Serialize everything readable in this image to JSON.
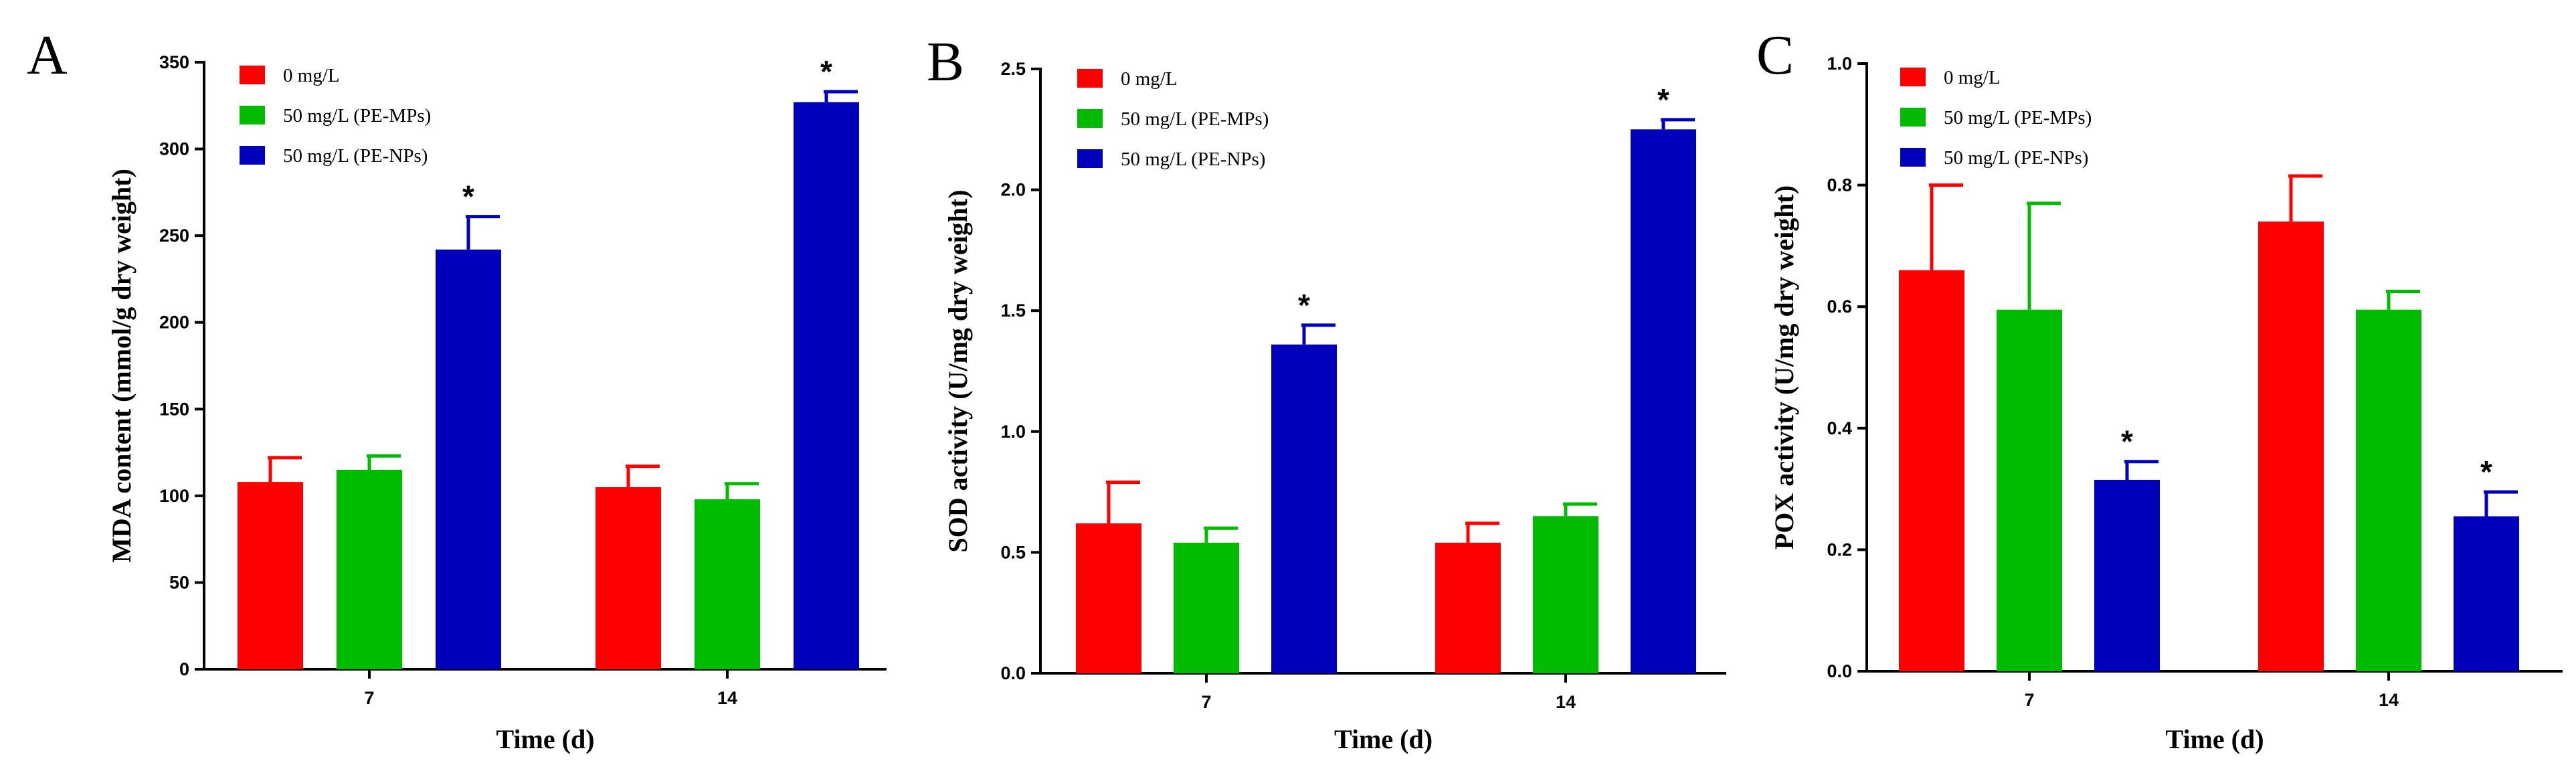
{
  "chart_data": [
    {
      "panel": "A",
      "type": "bar",
      "xlabel": "Time (d)",
      "ylabel": "MDA content (mmol/g dry weight)",
      "ylim": [
        0,
        350
      ],
      "yticks": [
        0,
        50,
        100,
        150,
        200,
        250,
        300,
        350
      ],
      "ytick_labels": [
        "0",
        "50",
        "100",
        "150",
        "200",
        "250",
        "300",
        "350"
      ],
      "categories": [
        "7",
        "14"
      ],
      "legend_position": "top-left",
      "series": [
        {
          "name": "0 mg/L",
          "color": "#ff0000",
          "values": [
            108,
            105
          ],
          "errors": [
            14,
            12
          ],
          "significant": [
            false,
            false
          ]
        },
        {
          "name": "50 mg/L (PE-MPs)",
          "color": "#00bb00",
          "values": [
            115,
            98
          ],
          "errors": [
            8,
            9
          ],
          "significant": [
            false,
            false
          ]
        },
        {
          "name": "50 mg/L (PE-NPs)",
          "color": "#0000bb",
          "values": [
            242,
            327
          ],
          "errors": [
            19,
            6
          ],
          "significant": [
            true,
            true
          ]
        }
      ],
      "significance_mark": "*"
    },
    {
      "panel": "B",
      "type": "bar",
      "xlabel": "Time (d)",
      "ylabel": "SOD activity (U/mg dry weight)",
      "ylim": [
        0,
        2.5
      ],
      "yticks": [
        0,
        0.5,
        1.0,
        1.5,
        2.0,
        2.5
      ],
      "ytick_labels": [
        "0.0",
        "0.5",
        "1.0",
        "1.5",
        "2.0",
        "2.5"
      ],
      "categories": [
        "7",
        "14"
      ],
      "legend_position": "top-left",
      "series": [
        {
          "name": "0 mg/L",
          "color": "#ff0000",
          "values": [
            0.62,
            0.54
          ],
          "errors": [
            0.17,
            0.08
          ],
          "significant": [
            false,
            false
          ]
        },
        {
          "name": "50 mg/L (PE-MPs)",
          "color": "#00bb00",
          "values": [
            0.54,
            0.65
          ],
          "errors": [
            0.06,
            0.05
          ],
          "significant": [
            false,
            false
          ]
        },
        {
          "name": "50 mg/L (PE-NPs)",
          "color": "#0000bb",
          "values": [
            1.36,
            2.25
          ],
          "errors": [
            0.08,
            0.04
          ],
          "significant": [
            true,
            true
          ]
        }
      ],
      "significance_mark": "*"
    },
    {
      "panel": "C",
      "type": "bar",
      "xlabel": "Time (d)",
      "ylabel": "POX activity (U/mg dry weight)",
      "ylim": [
        0,
        1.0
      ],
      "yticks": [
        0,
        0.2,
        0.4,
        0.6,
        0.8,
        1.0
      ],
      "ytick_labels": [
        "0.0",
        "0.2",
        "0.4",
        "0.6",
        "0.8",
        "1.0"
      ],
      "categories": [
        "7",
        "14"
      ],
      "legend_position": "top-left",
      "series": [
        {
          "name": "0 mg/L",
          "color": "#ff0000",
          "values": [
            0.66,
            0.74
          ],
          "errors": [
            0.14,
            0.075
          ],
          "significant": [
            false,
            false
          ]
        },
        {
          "name": "50 mg/L (PE-MPs)",
          "color": "#00bb00",
          "values": [
            0.595,
            0.595
          ],
          "errors": [
            0.175,
            0.03
          ],
          "significant": [
            false,
            false
          ]
        },
        {
          "name": "50 mg/L (PE-NPs)",
          "color": "#0000bb",
          "values": [
            0.315,
            0.255
          ],
          "errors": [
            0.03,
            0.04
          ],
          "significant": [
            true,
            true
          ]
        }
      ],
      "significance_mark": "*"
    }
  ]
}
